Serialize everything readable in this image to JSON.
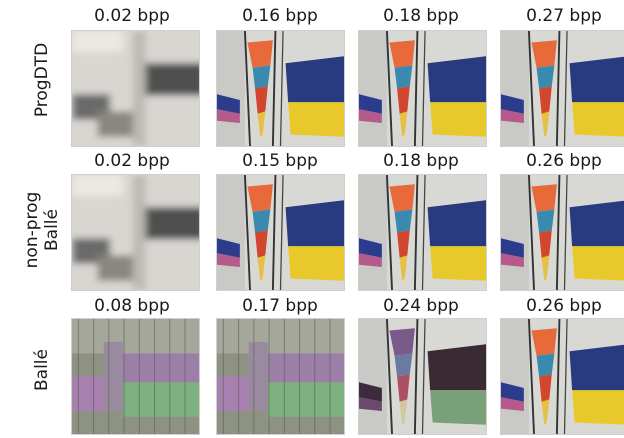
{
  "rows": [
    {
      "label_lines": [
        "ProgDTD"
      ],
      "cells": [
        {
          "bpp": "0.02 bpp",
          "style": "blur"
        },
        {
          "bpp": "0.16 bpp",
          "style": "flags"
        },
        {
          "bpp": "0.18 bpp",
          "style": "flags"
        },
        {
          "bpp": "0.27 bpp",
          "style": "flags"
        }
      ]
    },
    {
      "label_lines": [
        "non-prog",
        "Ballé"
      ],
      "cells": [
        {
          "bpp": "0.02 bpp",
          "style": "blur"
        },
        {
          "bpp": "0.15 bpp",
          "style": "flags"
        },
        {
          "bpp": "0.18 bpp",
          "style": "flags"
        },
        {
          "bpp": "0.26 bpp",
          "style": "flags"
        }
      ]
    },
    {
      "label_lines": [
        "Ballé"
      ],
      "cells": [
        {
          "bpp": "0.08 bpp",
          "style": "artifact"
        },
        {
          "bpp": "0.17 bpp",
          "style": "artifact"
        },
        {
          "bpp": "0.24 bpp",
          "style": "dark-flags"
        },
        {
          "bpp": "0.26 bpp",
          "style": "flags"
        }
      ]
    }
  ]
}
